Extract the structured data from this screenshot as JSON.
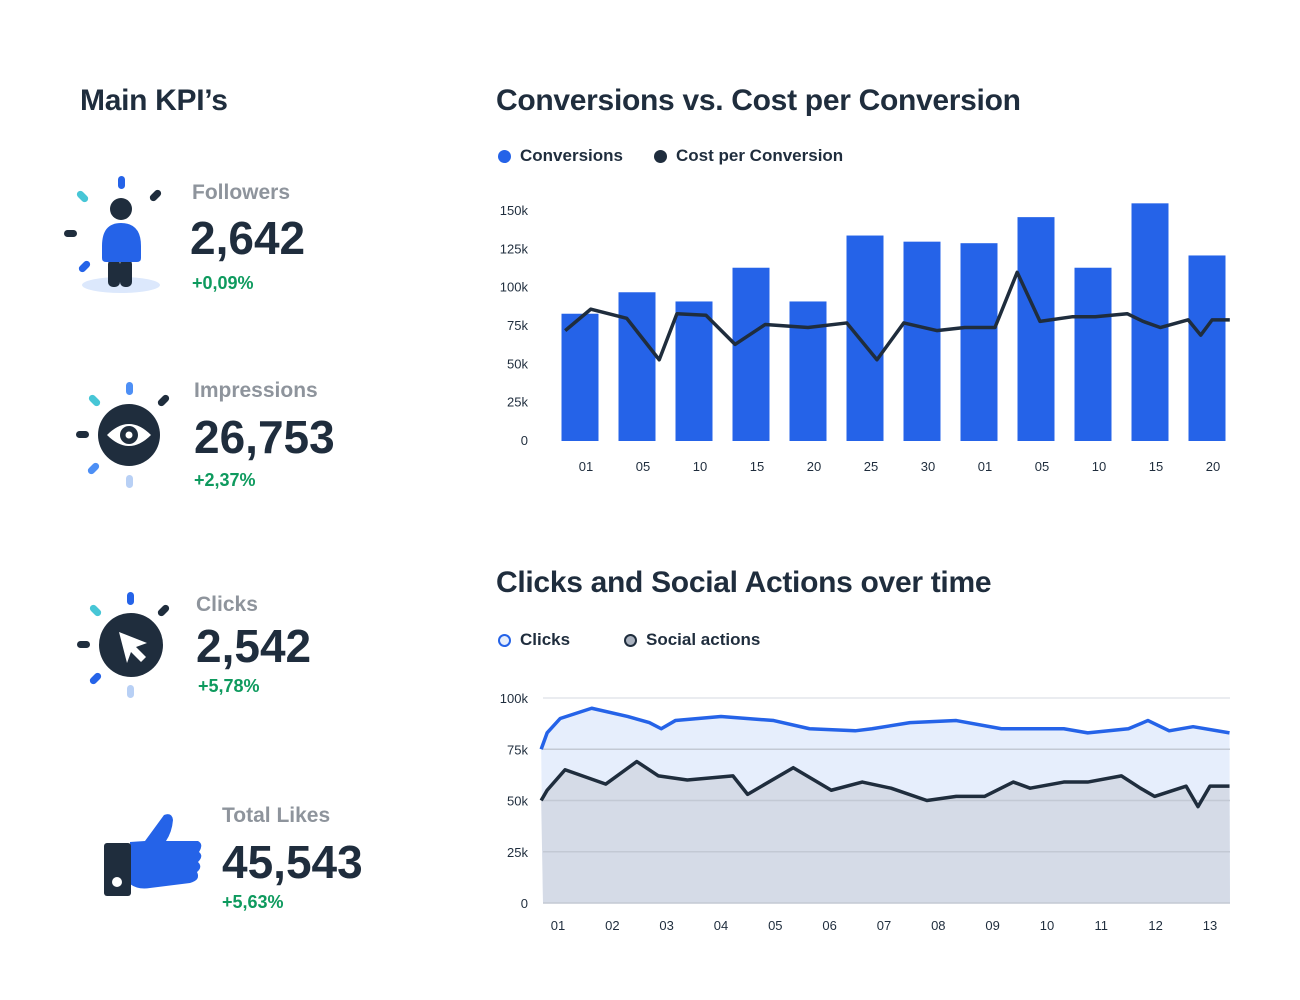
{
  "kpi_panel": {
    "title": "Main KPI’s",
    "items": [
      {
        "label": "Followers",
        "value": "2,642",
        "change": "+0,09%",
        "icon": "person-icon"
      },
      {
        "label": "Impressions",
        "value": "26,753",
        "change": "+2,37%",
        "icon": "eye-icon"
      },
      {
        "label": "Clicks",
        "value": "2,542",
        "change": "+5,78%",
        "icon": "cursor-icon"
      },
      {
        "label": "Total Likes",
        "value": "45,543",
        "change": "+5,63%",
        "icon": "thumbs-up-icon"
      }
    ]
  },
  "colors": {
    "blue": "#2563e8",
    "dark": "#1f2d3d",
    "green": "#0e9a5e",
    "light_blue_fill": "#e6eefc",
    "grey_fill": "#d5dbe7"
  },
  "chart_data": [
    {
      "type": "bar",
      "title": "Conversions vs. Cost per Conversion",
      "legend": [
        {
          "name": "Conversions",
          "color": "#2563e8"
        },
        {
          "name": "Cost per Conversion",
          "color": "#1f2d3d"
        }
      ],
      "legend_position": "top-left",
      "categories": [
        "01",
        "05",
        "10",
        "15",
        "20",
        "25",
        "30",
        "01",
        "05",
        "10",
        "15",
        "20"
      ],
      "y_ticks": [
        "0",
        "25k",
        "50k",
        "75k",
        "100k",
        "125k",
        "150k"
      ],
      "y_tick_values": [
        0,
        25,
        50,
        75,
        100,
        125,
        150
      ],
      "ylim": [
        0,
        150
      ],
      "series": [
        {
          "name": "Conversions",
          "type": "bar",
          "values": [
            83,
            97,
            91,
            113,
            91,
            134,
            130,
            129,
            146,
            113,
            155,
            121
          ]
        },
        {
          "name": "Cost per Conversion",
          "type": "line",
          "x": [
            -0.26,
            0.19,
            0.82,
            1.39,
            1.7,
            2.21,
            2.72,
            3.25,
            4.0,
            4.68,
            5.21,
            5.68,
            6.26,
            6.75,
            7.28,
            7.67,
            8.07,
            8.63,
            9.04,
            9.6,
            9.88,
            10.18,
            10.67,
            10.89,
            11.09,
            11.4
          ],
          "values": [
            72,
            86,
            80,
            53,
            83,
            82,
            63,
            76,
            74,
            77,
            53,
            77,
            72,
            74,
            74,
            110,
            78,
            81,
            81,
            83,
            78,
            74,
            79,
            69,
            79,
            79
          ]
        }
      ]
    },
    {
      "type": "area",
      "title": "Clicks and Social Actions over time",
      "legend": [
        {
          "name": "Clicks",
          "color": "#2563e8"
        },
        {
          "name": "Social actions",
          "color": "#1f2d3d"
        }
      ],
      "legend_position": "top-left",
      "x_ticks": [
        "01",
        "02",
        "03",
        "04",
        "05",
        "06",
        "07",
        "08",
        "09",
        "10",
        "11",
        "12",
        "13"
      ],
      "y_ticks": [
        "0",
        "25k",
        "50k",
        "75k",
        "100k"
      ],
      "y_tick_values": [
        0,
        25,
        50,
        75,
        100
      ],
      "ylim": [
        0,
        100
      ],
      "grid": true,
      "series": [
        {
          "name": "Clicks",
          "x": [
            -0.31,
            -0.2,
            0.04,
            0.62,
            1.28,
            1.68,
            1.9,
            2.16,
            3.0,
            3.97,
            4.63,
            5.47,
            5.78,
            6.48,
            7.33,
            8.16,
            9.31,
            9.75,
            10.5,
            10.86,
            11.25,
            11.69,
            12.36
          ],
          "values": [
            75,
            83,
            90,
            95,
            91,
            88,
            85,
            89,
            91,
            89,
            85,
            84,
            85,
            88,
            89,
            85,
            85,
            83,
            85,
            89,
            84,
            86,
            83
          ]
        },
        {
          "name": "Social actions",
          "x": [
            -0.31,
            -0.2,
            0.13,
            0.88,
            1.45,
            1.85,
            2.38,
            3.22,
            3.49,
            4.33,
            5.03,
            5.6,
            6.13,
            6.79,
            7.33,
            7.85,
            8.38,
            8.69,
            9.31,
            9.75,
            10.37,
            10.72,
            10.98,
            11.56,
            11.78,
            12.0,
            12.36
          ],
          "values": [
            50,
            55,
            65,
            58,
            69,
            62,
            60,
            62,
            53,
            66,
            55,
            59,
            56,
            50,
            52,
            52,
            59,
            56,
            59,
            59,
            62,
            56,
            52,
            57,
            47,
            57,
            57
          ]
        }
      ]
    }
  ]
}
